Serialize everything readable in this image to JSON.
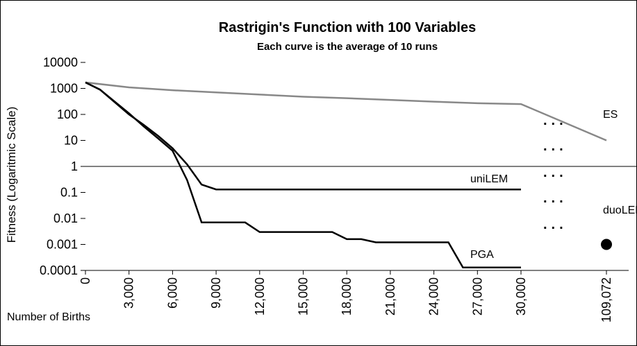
{
  "chart_data": {
    "type": "line",
    "title": "Rastrigin's Function with 100 Variables",
    "subtitle": "Each curve is the average of 10 runs",
    "y_label": "Fitness (Logaritmic Scale)",
    "x_label": "Number of Births",
    "log_y": true,
    "x_break": 30000,
    "xlim": [
      0,
      109072
    ],
    "xticks": [
      0,
      {
        "value": 3000,
        "label": "3,000"
      },
      {
        "value": 6000,
        "label": "6,000"
      },
      {
        "value": 9000,
        "label": "9,000"
      },
      {
        "value": 12000,
        "label": "12,000"
      },
      {
        "value": 15000,
        "label": "15,000"
      },
      {
        "value": 18000,
        "label": "18,000"
      },
      {
        "value": 21000,
        "label": "21,000"
      },
      {
        "value": 24000,
        "label": "24,000"
      },
      {
        "value": 27000,
        "label": "27,000"
      },
      {
        "value": 30000,
        "label": "30,000"
      },
      {
        "value": 109072,
        "label": "109,072"
      }
    ],
    "ylim": [
      0.0001,
      10000
    ],
    "yticks": [
      0.0001,
      0.001,
      0.01,
      0.1,
      1,
      10,
      100,
      1000,
      10000
    ],
    "reference_line": 1,
    "series": [
      {
        "name": "ES",
        "color": "#888888",
        "x": [
          0,
          3000,
          6000,
          9000,
          12000,
          15000,
          18000,
          21000,
          24000,
          27000,
          30000,
          109072
        ],
        "values": [
          1700,
          1100,
          850,
          700,
          580,
          480,
          420,
          360,
          310,
          270,
          250,
          10
        ]
      },
      {
        "name": "uniLEM",
        "color": "#000000",
        "x": [
          0,
          1000,
          3000,
          4000,
          5000,
          6000,
          7000,
          8000,
          9000,
          30000
        ],
        "values": [
          1700,
          900,
          100,
          40,
          15,
          5,
          1.2,
          0.2,
          0.13,
          0.13
        ]
      },
      {
        "name": "duoLEM",
        "color": "#000000",
        "x": [
          0,
          1000,
          3000,
          4000,
          5000,
          6000,
          7000,
          8000,
          11000,
          12000,
          17000,
          18000,
          19000,
          20000,
          25000,
          26000,
          30000
        ],
        "values": [
          1700,
          900,
          110,
          35,
          12,
          4,
          0.3,
          0.007,
          0.007,
          0.003,
          0.003,
          0.0016,
          0.0016,
          0.0012,
          0.0012,
          0.00013,
          0.00013
        ]
      },
      {
        "name": "PGA",
        "color": "#000000",
        "marker": "circle",
        "x": [
          109072
        ],
        "values": [
          0.001
        ]
      }
    ]
  }
}
